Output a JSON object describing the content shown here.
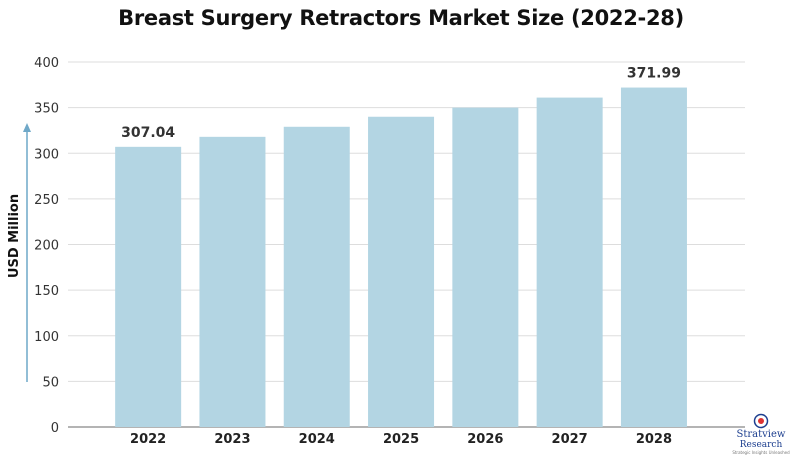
{
  "chart_data": {
    "type": "bar",
    "title": "Breast Surgery Retractors Market Size (2022-28)",
    "ylabel": "USD Million",
    "xlabel": "",
    "categories": [
      "2022",
      "2023",
      "2024",
      "2025",
      "2026",
      "2027",
      "2028"
    ],
    "values": [
      307.04,
      318,
      329,
      340,
      350,
      361,
      371.99
    ],
    "data_labels": {
      "2022": "307.04",
      "2028": "371.99"
    },
    "ylim": [
      0,
      400
    ],
    "yticks": [
      0,
      50,
      100,
      150,
      200,
      250,
      300,
      350,
      400
    ],
    "grid": true,
    "bar_color": "#b3d5e3",
    "grid_color": "#dddddd"
  },
  "logo": {
    "name": "Stratview",
    "sub": "Research",
    "tagline": "Strategic Insights Unleashed"
  }
}
